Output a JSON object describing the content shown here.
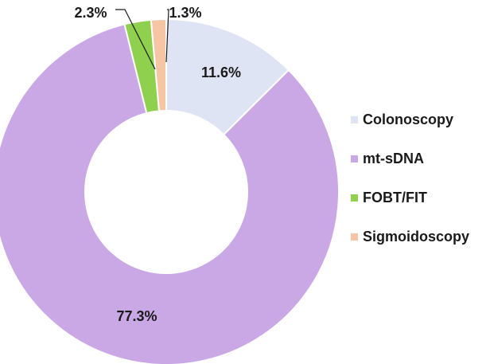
{
  "chart_data": {
    "type": "pie",
    "donut": true,
    "title": "",
    "categories": [
      "Colonoscopy",
      "mt-sDNA",
      "FOBT/FIT",
      "Sigmoidoscopy"
    ],
    "values": [
      11.6,
      77.3,
      2.3,
      1.3
    ],
    "labels": [
      "11.6%",
      "77.3%",
      "2.3%",
      "1.3%"
    ],
    "colors": [
      "#dfe4f4",
      "#c9a8e5",
      "#8fd14f",
      "#f6c6a4"
    ],
    "legend_position": "right"
  },
  "legend": {
    "items": [
      {
        "label": "Colonoscopy",
        "color": "#dfe4f4"
      },
      {
        "label": "mt-sDNA",
        "color": "#c9a8e5"
      },
      {
        "label": "FOBT/FIT",
        "color": "#8fd14f"
      },
      {
        "label": "Sigmoidoscopy",
        "color": "#f6c6a4"
      }
    ]
  }
}
